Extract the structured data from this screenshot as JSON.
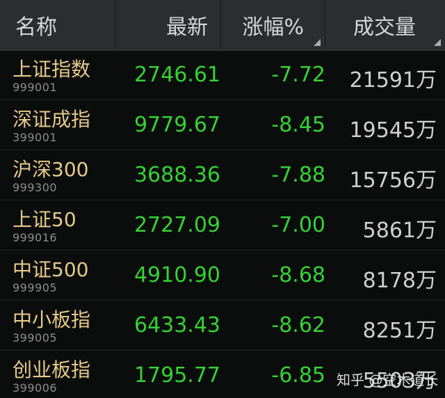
{
  "header": {
    "name": "名称",
    "latest": "最新",
    "change_pct": "涨幅%",
    "volume": "成交量"
  },
  "rows": [
    {
      "name": "上证指数",
      "code": "999001",
      "price": "2746.61",
      "change": "-7.72",
      "volume": "21591万"
    },
    {
      "name": "深证成指",
      "code": "399001",
      "price": "9779.67",
      "change": "-8.45",
      "volume": "19545万"
    },
    {
      "name": "沪深300",
      "code": "999300",
      "price": "3688.36",
      "change": "-7.88",
      "volume": "15756万"
    },
    {
      "name": "上证50",
      "code": "999016",
      "price": "2727.09",
      "change": "-7.00",
      "volume": "5861万"
    },
    {
      "name": "中证500",
      "code": "999905",
      "price": "4910.90",
      "change": "-8.68",
      "volume": "8178万"
    },
    {
      "name": "中小板指",
      "code": "399005",
      "price": "6433.43",
      "change": "-8.62",
      "volume": "8251万"
    },
    {
      "name": "创业板指",
      "code": "399006",
      "price": "1795.77",
      "change": "-6.85",
      "volume": "5503万"
    }
  ],
  "watermark": "知乎 @空木道长",
  "colors": {
    "header_bg": "#2b2d2e",
    "name": "#e6c98b",
    "down": "#35d235",
    "volume": "#cfcfcf"
  }
}
